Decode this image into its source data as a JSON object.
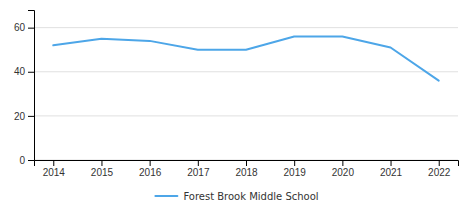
{
  "chart_data": {
    "type": "line",
    "x": [
      2014,
      2015,
      2016,
      2017,
      2018,
      2019,
      2020,
      2021,
      2022
    ],
    "series": [
      {
        "name": "Forest Brook Middle School",
        "color": "#4da6e8",
        "values": [
          52,
          55,
          54,
          50,
          50,
          56,
          56,
          51,
          36
        ]
      }
    ],
    "xlim": [
      2013.6,
      2022.4
    ],
    "xticks": [
      2014,
      2015,
      2016,
      2017,
      2018,
      2019,
      2020,
      2021,
      2022
    ],
    "ylim": [
      0,
      68
    ],
    "yticks": [
      0,
      20,
      40,
      60
    ],
    "grid": true,
    "legend": "bottom"
  }
}
